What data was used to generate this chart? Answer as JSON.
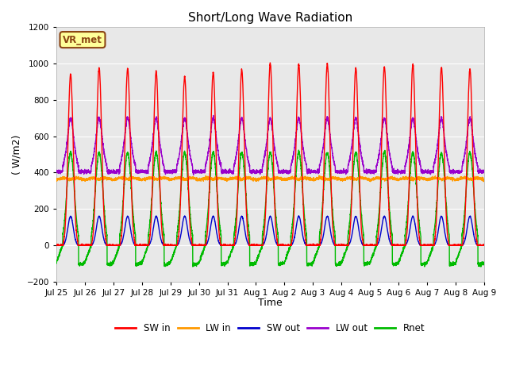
{
  "title": "Short/Long Wave Radiation",
  "xlabel": "Time",
  "ylabel": "( W/m2)",
  "ylim": [
    -200,
    1200
  ],
  "yticks": [
    -200,
    0,
    200,
    400,
    600,
    800,
    1000,
    1200
  ],
  "background_color": "#ffffff",
  "plot_bg_color": "#e8e8e8",
  "annotation_label": "VR_met",
  "annotation_bg": "#ffff99",
  "annotation_border": "#8b4513",
  "legend_entries": [
    "SW in",
    "LW in",
    "SW out",
    "LW out",
    "Rnet"
  ],
  "colors": {
    "SW_in": "#ff0000",
    "LW_in": "#ff9900",
    "SW_out": "#0000cc",
    "LW_out": "#9900cc",
    "Rnet": "#00bb00"
  },
  "n_days": 15,
  "pts_per_day": 288,
  "x_tick_labels": [
    "Jul 25",
    "Jul 26",
    "Jul 27",
    "Jul 28",
    "Jul 29",
    "Jul 30",
    "Jul 31",
    "Aug 1",
    "Aug 2",
    "Aug 3",
    "Aug 4",
    "Aug 5",
    "Aug 6",
    "Aug 7",
    "Aug 8",
    "Aug 9"
  ],
  "SW_in_peaks": [
    940,
    975,
    970,
    955,
    925,
    950,
    965,
    1000,
    995,
    995,
    975,
    980,
    995,
    975,
    968
  ],
  "LW_in_base": 360,
  "LW_in_variation": 30,
  "SW_out_peak": 160,
  "LW_out_night": 400,
  "LW_out_peak": 640,
  "Rnet_peak": 510,
  "Rnet_night": -95
}
